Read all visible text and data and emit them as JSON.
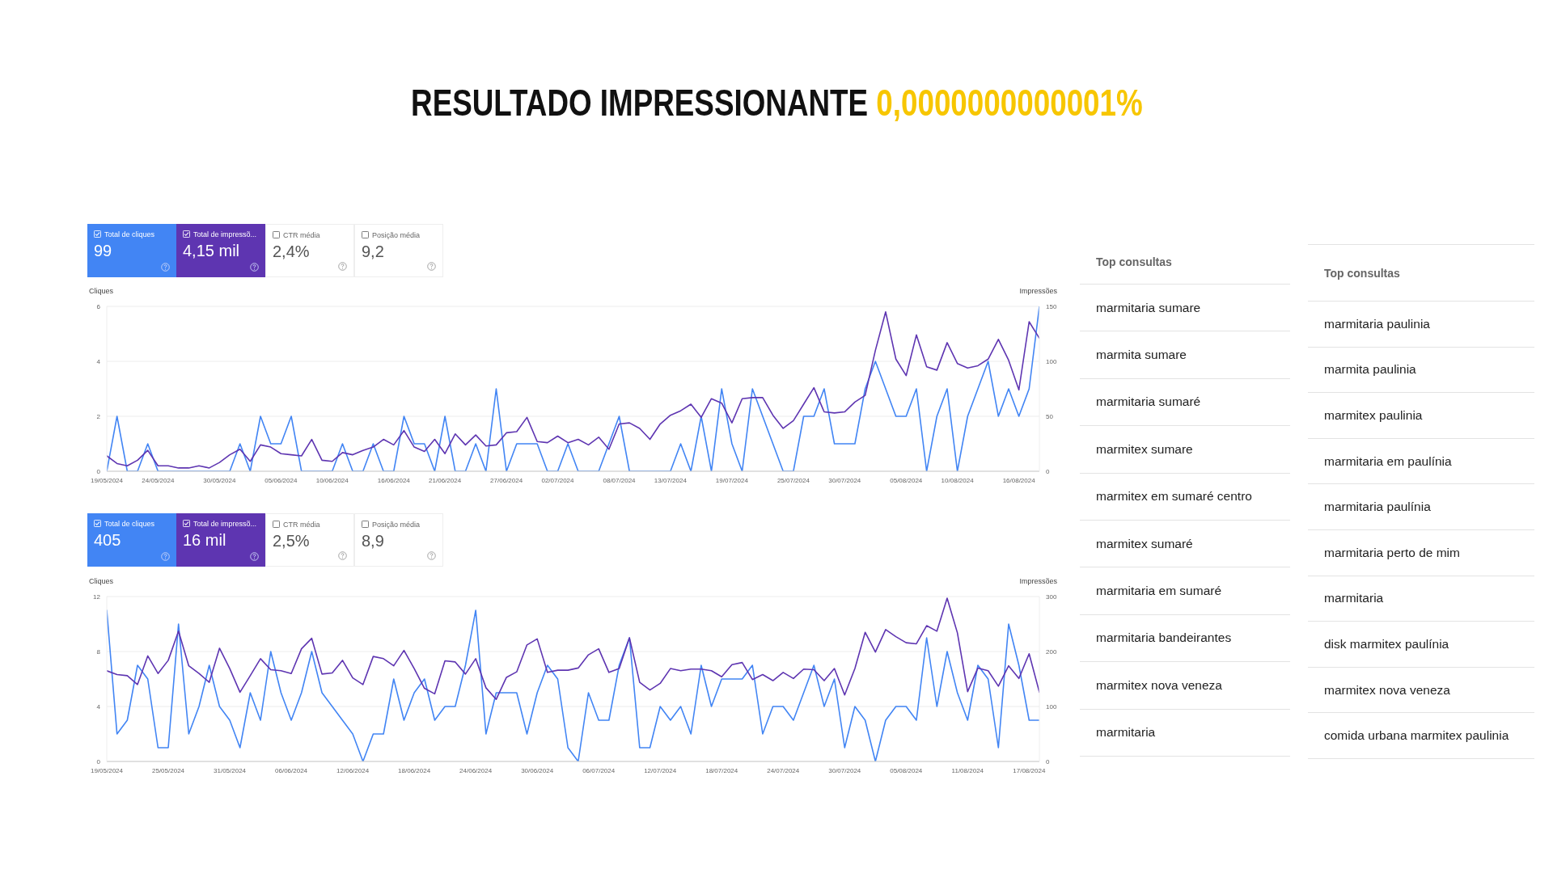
{
  "chart_data": [
    {
      "type": "line",
      "title": "RESULTADO IMPRESSIONANTE 0,0000000000001%",
      "ylabel": "Cliques",
      "y2label": "Impressões",
      "legend": "top left",
      "grid": "y",
      "line_style": "solid",
      "annotations": [
        "99",
        "4,15 mil",
        "CTR média",
        "2,4%",
        "Posição média",
        "9,2"
      ],
      "x": [
        "2024-05-19",
        "2024-05-20",
        "2024-05-21",
        "2024-05-22",
        "2024-05-23",
        "2024-05-24",
        "2024-05-25",
        "2024-05-26",
        "2024-05-27",
        "2024-05-28",
        "2024-05-29",
        "2024-05-30",
        "2024-05-31",
        "2024-06-01",
        "2024-06-02",
        "2024-06-03",
        "2024-06-04",
        "2024-06-05",
        "2024-06-06",
        "2024-06-07",
        "2024-06-08",
        "2024-06-09",
        "2024-06-10",
        "2024-06-11",
        "2024-06-12",
        "2024-06-13",
        "2024-06-14",
        "2024-06-15",
        "2024-06-16",
        "2024-06-17",
        "2024-06-18",
        "2024-06-19",
        "2024-06-20",
        "2024-06-21",
        "2024-06-22",
        "2024-06-23",
        "2024-06-24",
        "2024-06-25",
        "2024-06-26",
        "2024-06-27",
        "2024-06-28",
        "2024-06-29",
        "2024-06-30",
        "2024-07-01",
        "2024-07-02",
        "2024-07-03",
        "2024-07-04",
        "2024-07-05",
        "2024-07-06",
        "2024-07-07",
        "2024-07-08",
        "2024-07-09",
        "2024-07-10",
        "2024-07-11",
        "2024-07-12",
        "2024-07-13",
        "2024-07-14",
        "2024-07-15",
        "2024-07-16",
        "2024-07-17",
        "2024-07-18",
        "2024-07-19",
        "2024-07-20",
        "2024-07-21",
        "2024-07-22",
        "2024-07-23",
        "2024-07-24",
        "2024-07-25",
        "2024-07-26",
        "2024-07-27",
        "2024-07-28",
        "2024-07-29",
        "2024-07-30",
        "2024-07-31",
        "2024-08-01",
        "2024-08-02",
        "2024-08-03",
        "2024-08-04",
        "2024-08-05",
        "2024-08-06",
        "2024-08-07",
        "2024-08-08",
        "2024-08-09",
        "2024-08-10",
        "2024-08-11",
        "2024-08-12",
        "2024-08-13",
        "2024-08-14",
        "2024-08-15",
        "2024-08-16",
        "2024-08-17",
        "2024-08-18"
      ],
      "xlim": [
        "2024-05-19",
        "2024-08-18"
      ],
      "xticks": [
        {
          "value": "2024-05-19",
          "label": "19/05/2024"
        },
        {
          "value": "2024-05-24",
          "label": "24/05/2024"
        },
        {
          "value": "2024-05-30",
          "label": "30/05/2024"
        },
        {
          "value": "2024-06-05",
          "label": "05/06/2024"
        },
        {
          "value": "2024-06-10",
          "label": "10/06/2024"
        },
        {
          "value": "2024-06-16",
          "label": "16/06/2024"
        },
        {
          "value": "2024-06-21",
          "label": "21/06/2024"
        },
        {
          "value": "2024-06-27",
          "label": "27/06/2024"
        },
        {
          "value": "2024-07-02",
          "label": "02/07/2024"
        },
        {
          "value": "2024-07-08",
          "label": "08/07/2024"
        },
        {
          "value": "2024-07-13",
          "label": "13/07/2024"
        },
        {
          "value": "2024-07-19",
          "label": "19/07/2024"
        },
        {
          "value": "2024-07-25",
          "label": "25/07/2024"
        },
        {
          "value": "2024-07-30",
          "label": "30/07/2024"
        },
        {
          "value": "2024-08-05",
          "label": "05/08/2024"
        },
        {
          "value": "2024-08-10",
          "label": "10/08/2024"
        },
        {
          "value": "2024-08-16",
          "label": "16/08/2024"
        }
      ],
      "ylim": [
        0,
        6
      ],
      "yticks": [
        0,
        2,
        4,
        6
      ],
      "y2lim": [
        0,
        150
      ],
      "y2ticks": [
        0,
        50,
        100,
        150
      ],
      "series": [
        {
          "name": "Total de cliques",
          "color": "#4285f4",
          "values": [
            0,
            2,
            0,
            0,
            1,
            0,
            0,
            0,
            0,
            0,
            0,
            0,
            0,
            1,
            0,
            2,
            1,
            1,
            2,
            0,
            0,
            0,
            0,
            1,
            0,
            0,
            1,
            0,
            0,
            2,
            1,
            1,
            0,
            2,
            0,
            0,
            1,
            0,
            3,
            0,
            1,
            1,
            1,
            0,
            0,
            1,
            0,
            0,
            0,
            1,
            2,
            0,
            0,
            0,
            0,
            0,
            1,
            0,
            2,
            0,
            3,
            1,
            0,
            3,
            2,
            1,
            0,
            0,
            2,
            2,
            3,
            1,
            1,
            1,
            3,
            4,
            3,
            2,
            2,
            3,
            0,
            2,
            3,
            0,
            2,
            3,
            4,
            2,
            3,
            2,
            3,
            6
          ]
        },
        {
          "name": "Total de impressõ...",
          "color": "#5e35b1",
          "axis": "y2",
          "values": [
            14,
            7,
            5,
            10,
            19,
            5,
            5,
            3,
            3,
            5,
            3,
            8,
            15,
            20,
            9,
            24,
            22,
            16,
            15,
            14,
            29,
            10,
            9,
            17,
            15,
            19,
            22,
            29,
            24,
            37,
            22,
            18,
            29,
            16,
            34,
            24,
            33,
            23,
            24,
            35,
            36,
            49,
            27,
            26,
            32,
            26,
            29,
            24,
            31,
            20,
            43,
            44,
            39,
            29,
            43,
            51,
            55,
            61,
            49,
            66,
            62,
            44,
            66,
            67,
            67,
            51,
            39,
            46,
            61,
            76,
            54,
            53,
            54,
            63,
            69,
            110,
            145,
            102,
            87,
            124,
            95,
            92,
            117,
            98,
            94,
            96,
            102,
            120,
            101,
            74,
            136,
            121
          ]
        }
      ]
    },
    {
      "type": "line",
      "ylabel": "Cliques",
      "y2label": "Impressões",
      "legend": "top left",
      "grid": "y",
      "line_style": "solid",
      "annotations": [
        "405",
        "16 mil",
        "CTR média",
        "2,5%",
        "Posição média",
        "8,9"
      ],
      "x": [
        "2024-05-19",
        "2024-05-20",
        "2024-05-21",
        "2024-05-22",
        "2024-05-23",
        "2024-05-24",
        "2024-05-25",
        "2024-05-26",
        "2024-05-27",
        "2024-05-28",
        "2024-05-29",
        "2024-05-30",
        "2024-05-31",
        "2024-06-01",
        "2024-06-02",
        "2024-06-03",
        "2024-06-04",
        "2024-06-05",
        "2024-06-06",
        "2024-06-07",
        "2024-06-08",
        "2024-06-09",
        "2024-06-10",
        "2024-06-11",
        "2024-06-12",
        "2024-06-13",
        "2024-06-14",
        "2024-06-15",
        "2024-06-16",
        "2024-06-17",
        "2024-06-18",
        "2024-06-19",
        "2024-06-20",
        "2024-06-21",
        "2024-06-22",
        "2024-06-23",
        "2024-06-24",
        "2024-06-25",
        "2024-06-26",
        "2024-06-27",
        "2024-06-28",
        "2024-06-29",
        "2024-06-30",
        "2024-07-01",
        "2024-07-02",
        "2024-07-03",
        "2024-07-04",
        "2024-07-05",
        "2024-07-06",
        "2024-07-07",
        "2024-07-08",
        "2024-07-09",
        "2024-07-10",
        "2024-07-11",
        "2024-07-12",
        "2024-07-13",
        "2024-07-14",
        "2024-07-15",
        "2024-07-16",
        "2024-07-17",
        "2024-07-18",
        "2024-07-19",
        "2024-07-20",
        "2024-07-21",
        "2024-07-22",
        "2024-07-23",
        "2024-07-24",
        "2024-07-25",
        "2024-07-26",
        "2024-07-27",
        "2024-07-28",
        "2024-07-29",
        "2024-07-30",
        "2024-07-31",
        "2024-08-01",
        "2024-08-02",
        "2024-08-03",
        "2024-08-04",
        "2024-08-05",
        "2024-08-06",
        "2024-08-07",
        "2024-08-08",
        "2024-08-09",
        "2024-08-10",
        "2024-08-11",
        "2024-08-12",
        "2024-08-13",
        "2024-08-14",
        "2024-08-15",
        "2024-08-16",
        "2024-08-17",
        "2024-08-18"
      ],
      "xlim": [
        "2024-05-19",
        "2024-08-18"
      ],
      "xticks": [
        {
          "value": "2024-05-19",
          "label": "19/05/2024"
        },
        {
          "value": "2024-05-25",
          "label": "25/05/2024"
        },
        {
          "value": "2024-05-31",
          "label": "31/05/2024"
        },
        {
          "value": "2024-06-06",
          "label": "06/06/2024"
        },
        {
          "value": "2024-06-12",
          "label": "12/06/2024"
        },
        {
          "value": "2024-06-18",
          "label": "18/06/2024"
        },
        {
          "value": "2024-06-24",
          "label": "24/06/2024"
        },
        {
          "value": "2024-06-30",
          "label": "30/06/2024"
        },
        {
          "value": "2024-07-06",
          "label": "06/07/2024"
        },
        {
          "value": "2024-07-12",
          "label": "12/07/2024"
        },
        {
          "value": "2024-07-18",
          "label": "18/07/2024"
        },
        {
          "value": "2024-07-24",
          "label": "24/07/2024"
        },
        {
          "value": "2024-07-30",
          "label": "30/07/2024"
        },
        {
          "value": "2024-08-05",
          "label": "05/08/2024"
        },
        {
          "value": "2024-08-11",
          "label": "11/08/2024"
        },
        {
          "value": "2024-08-17",
          "label": "17/08/2024"
        }
      ],
      "ylim": [
        0,
        12
      ],
      "yticks": [
        0,
        4,
        8,
        12
      ],
      "y2lim": [
        0,
        300
      ],
      "y2ticks": [
        0,
        100,
        200,
        300
      ],
      "series": [
        {
          "name": "Total de cliques",
          "color": "#4285f4",
          "values": [
            11,
            2,
            3,
            7,
            6,
            1,
            1,
            10,
            2,
            4,
            7,
            4,
            3,
            1,
            5,
            3,
            8,
            5,
            3,
            5,
            8,
            5,
            4,
            3,
            2,
            0,
            2,
            2,
            6,
            3,
            5,
            6,
            3,
            4,
            4,
            7,
            11,
            2,
            5,
            5,
            5,
            2,
            5,
            7,
            6,
            1,
            0,
            5,
            3,
            3,
            7,
            9,
            1,
            1,
            4,
            3,
            4,
            2,
            7,
            4,
            6,
            6,
            6,
            7,
            2,
            4,
            4,
            3,
            5,
            7,
            4,
            6,
            1,
            4,
            3,
            0,
            3,
            4,
            4,
            3,
            9,
            4,
            8,
            5,
            3,
            7,
            6,
            1,
            10,
            7,
            3,
            3
          ]
        },
        {
          "name": "Total de impressõ...",
          "color": "#5e35b1",
          "axis": "y2",
          "values": [
            165,
            158,
            156,
            140,
            192,
            160,
            184,
            237,
            174,
            160,
            144,
            206,
            169,
            126,
            156,
            187,
            167,
            165,
            160,
            205,
            224,
            159,
            161,
            184,
            152,
            140,
            191,
            187,
            174,
            202,
            169,
            133,
            123,
            183,
            181,
            159,
            187,
            134,
            113,
            153,
            163,
            212,
            223,
            162,
            166,
            166,
            170,
            194,
            205,
            162,
            169,
            225,
            144,
            130,
            142,
            169,
            165,
            168,
            168,
            165,
            154,
            176,
            180,
            149,
            158,
            147,
            162,
            151,
            168,
            167,
            147,
            169,
            121,
            169,
            235,
            199,
            240,
            227,
            216,
            214,
            247,
            237,
            297,
            234,
            127,
            170,
            165,
            137,
            174,
            151,
            196,
            126
          ]
        }
      ]
    },
    {
      "type": "other",
      "title": "Top consultas",
      "annotations": [
        "marmitaria sumare",
        "marmita sumare",
        "marmitaria sumaré",
        "marmitex sumare",
        "marmitex em sumaré centro",
        "marmitex sumaré",
        "marmitaria em sumaré",
        "marmitaria bandeirantes",
        "marmitex nova veneza",
        "marmitaria"
      ]
    },
    {
      "type": "other",
      "title": "Top consultas",
      "annotations": [
        "marmitaria paulinia",
        "marmita paulinia",
        "marmitex paulinia",
        "marmitaria em paulínia",
        "marmitaria paulínia",
        "marmitaria perto de mim",
        "marmitaria",
        "disk marmitex paulínia",
        "marmitex nova veneza",
        "comida urbana marmitex paulinia"
      ]
    }
  ]
}
